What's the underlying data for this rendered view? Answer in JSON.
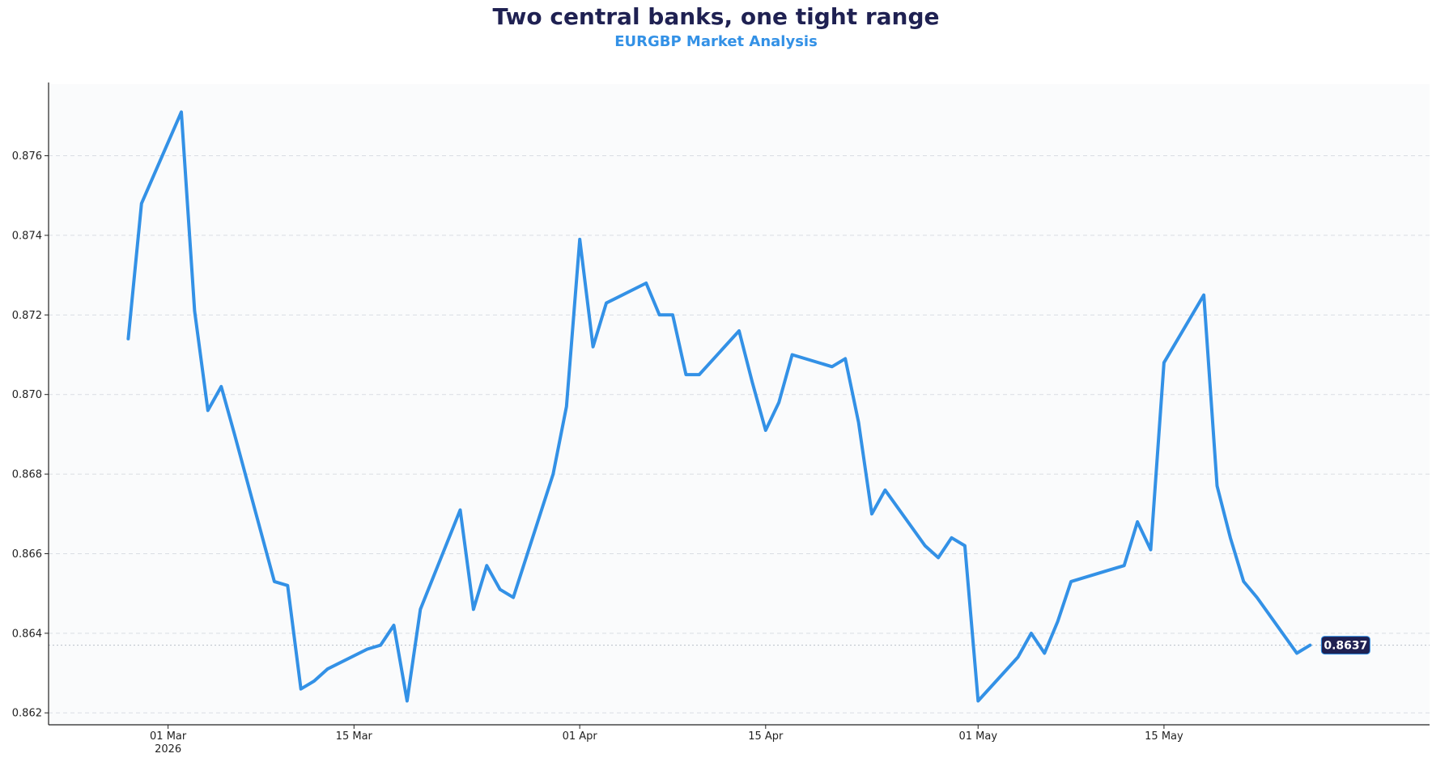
{
  "chart_data": {
    "type": "line",
    "title": "Two central banks, one tight range",
    "subtitle": "EURGBP Market Analysis",
    "xlabel": "",
    "ylabel": "",
    "grid": "horizontal-dashed",
    "xlim": [
      "2026-02-20",
      "2026-06-04"
    ],
    "ylim": [
      0.8617,
      0.8778
    ],
    "yticks": [
      0.862,
      0.864,
      0.866,
      0.868,
      0.87,
      0.872,
      0.874,
      0.876
    ],
    "ytick_labels": [
      "0.862",
      "0.864",
      "0.866",
      "0.868",
      "0.870",
      "0.872",
      "0.874",
      "0.876"
    ],
    "xticks": [
      {
        "date": "2026-03-01",
        "label": "01 Mar",
        "sublabel": "2026"
      },
      {
        "date": "2026-03-15",
        "label": "15 Mar",
        "sublabel": ""
      },
      {
        "date": "2026-04-01",
        "label": "01 Apr",
        "sublabel": ""
      },
      {
        "date": "2026-04-15",
        "label": "15 Apr",
        "sublabel": ""
      },
      {
        "date": "2026-05-01",
        "label": "01 May",
        "sublabel": ""
      },
      {
        "date": "2026-05-15",
        "label": "15 May",
        "sublabel": ""
      }
    ],
    "last_value_label": "0.8637",
    "line_color": "#3391e6",
    "badge_color": "#1f2152",
    "series": [
      {
        "x": [
          "2026-02-26",
          "2026-02-27",
          "2026-03-02",
          "2026-03-03",
          "2026-03-04",
          "2026-03-05",
          "2026-03-06",
          "2026-03-09",
          "2026-03-10",
          "2026-03-11",
          "2026-03-12",
          "2026-03-13",
          "2026-03-16",
          "2026-03-17",
          "2026-03-18",
          "2026-03-19",
          "2026-03-20",
          "2026-03-23",
          "2026-03-24",
          "2026-03-25",
          "2026-03-26",
          "2026-03-27",
          "2026-03-30",
          "2026-03-31",
          "2026-04-01",
          "2026-04-02",
          "2026-04-03",
          "2026-04-06",
          "2026-04-07",
          "2026-04-08",
          "2026-04-09",
          "2026-04-10",
          "2026-04-13",
          "2026-04-14",
          "2026-04-15",
          "2026-04-16",
          "2026-04-17",
          "2026-04-20",
          "2026-04-21",
          "2026-04-22",
          "2026-04-23",
          "2026-04-24",
          "2026-04-27",
          "2026-04-28",
          "2026-04-29",
          "2026-04-30",
          "2026-05-01",
          "2026-05-04",
          "2026-05-05",
          "2026-05-06",
          "2026-05-07",
          "2026-05-08",
          "2026-05-11",
          "2026-05-12",
          "2026-05-13",
          "2026-05-14",
          "2026-05-15",
          "2026-05-18",
          "2026-05-19",
          "2026-05-20",
          "2026-05-21",
          "2026-05-22",
          "2026-05-25",
          "2026-05-26"
        ],
        "y": [
          0.8714,
          0.8748,
          0.8771,
          0.8721,
          0.8696,
          0.8702,
          0.869,
          0.8653,
          0.8652,
          0.8626,
          0.8628,
          0.8631,
          0.8636,
          0.8637,
          0.8642,
          0.8623,
          0.8646,
          0.8671,
          0.8646,
          0.8657,
          0.8651,
          0.8649,
          0.868,
          0.8697,
          0.8739,
          0.8712,
          0.8723,
          0.8728,
          0.872,
          0.872,
          0.8705,
          0.8705,
          0.8716,
          0.8703,
          0.8691,
          0.8698,
          0.871,
          0.8707,
          0.8709,
          0.8693,
          0.867,
          0.8676,
          0.8662,
          0.8659,
          0.8664,
          0.8662,
          0.8623,
          0.8634,
          0.864,
          0.8635,
          0.8643,
          0.8653,
          0.8656,
          0.8657,
          0.8668,
          0.8661,
          0.8708,
          0.8725,
          0.8677,
          0.8664,
          0.8653,
          0.8649,
          0.8635,
          0.8637
        ]
      }
    ]
  }
}
